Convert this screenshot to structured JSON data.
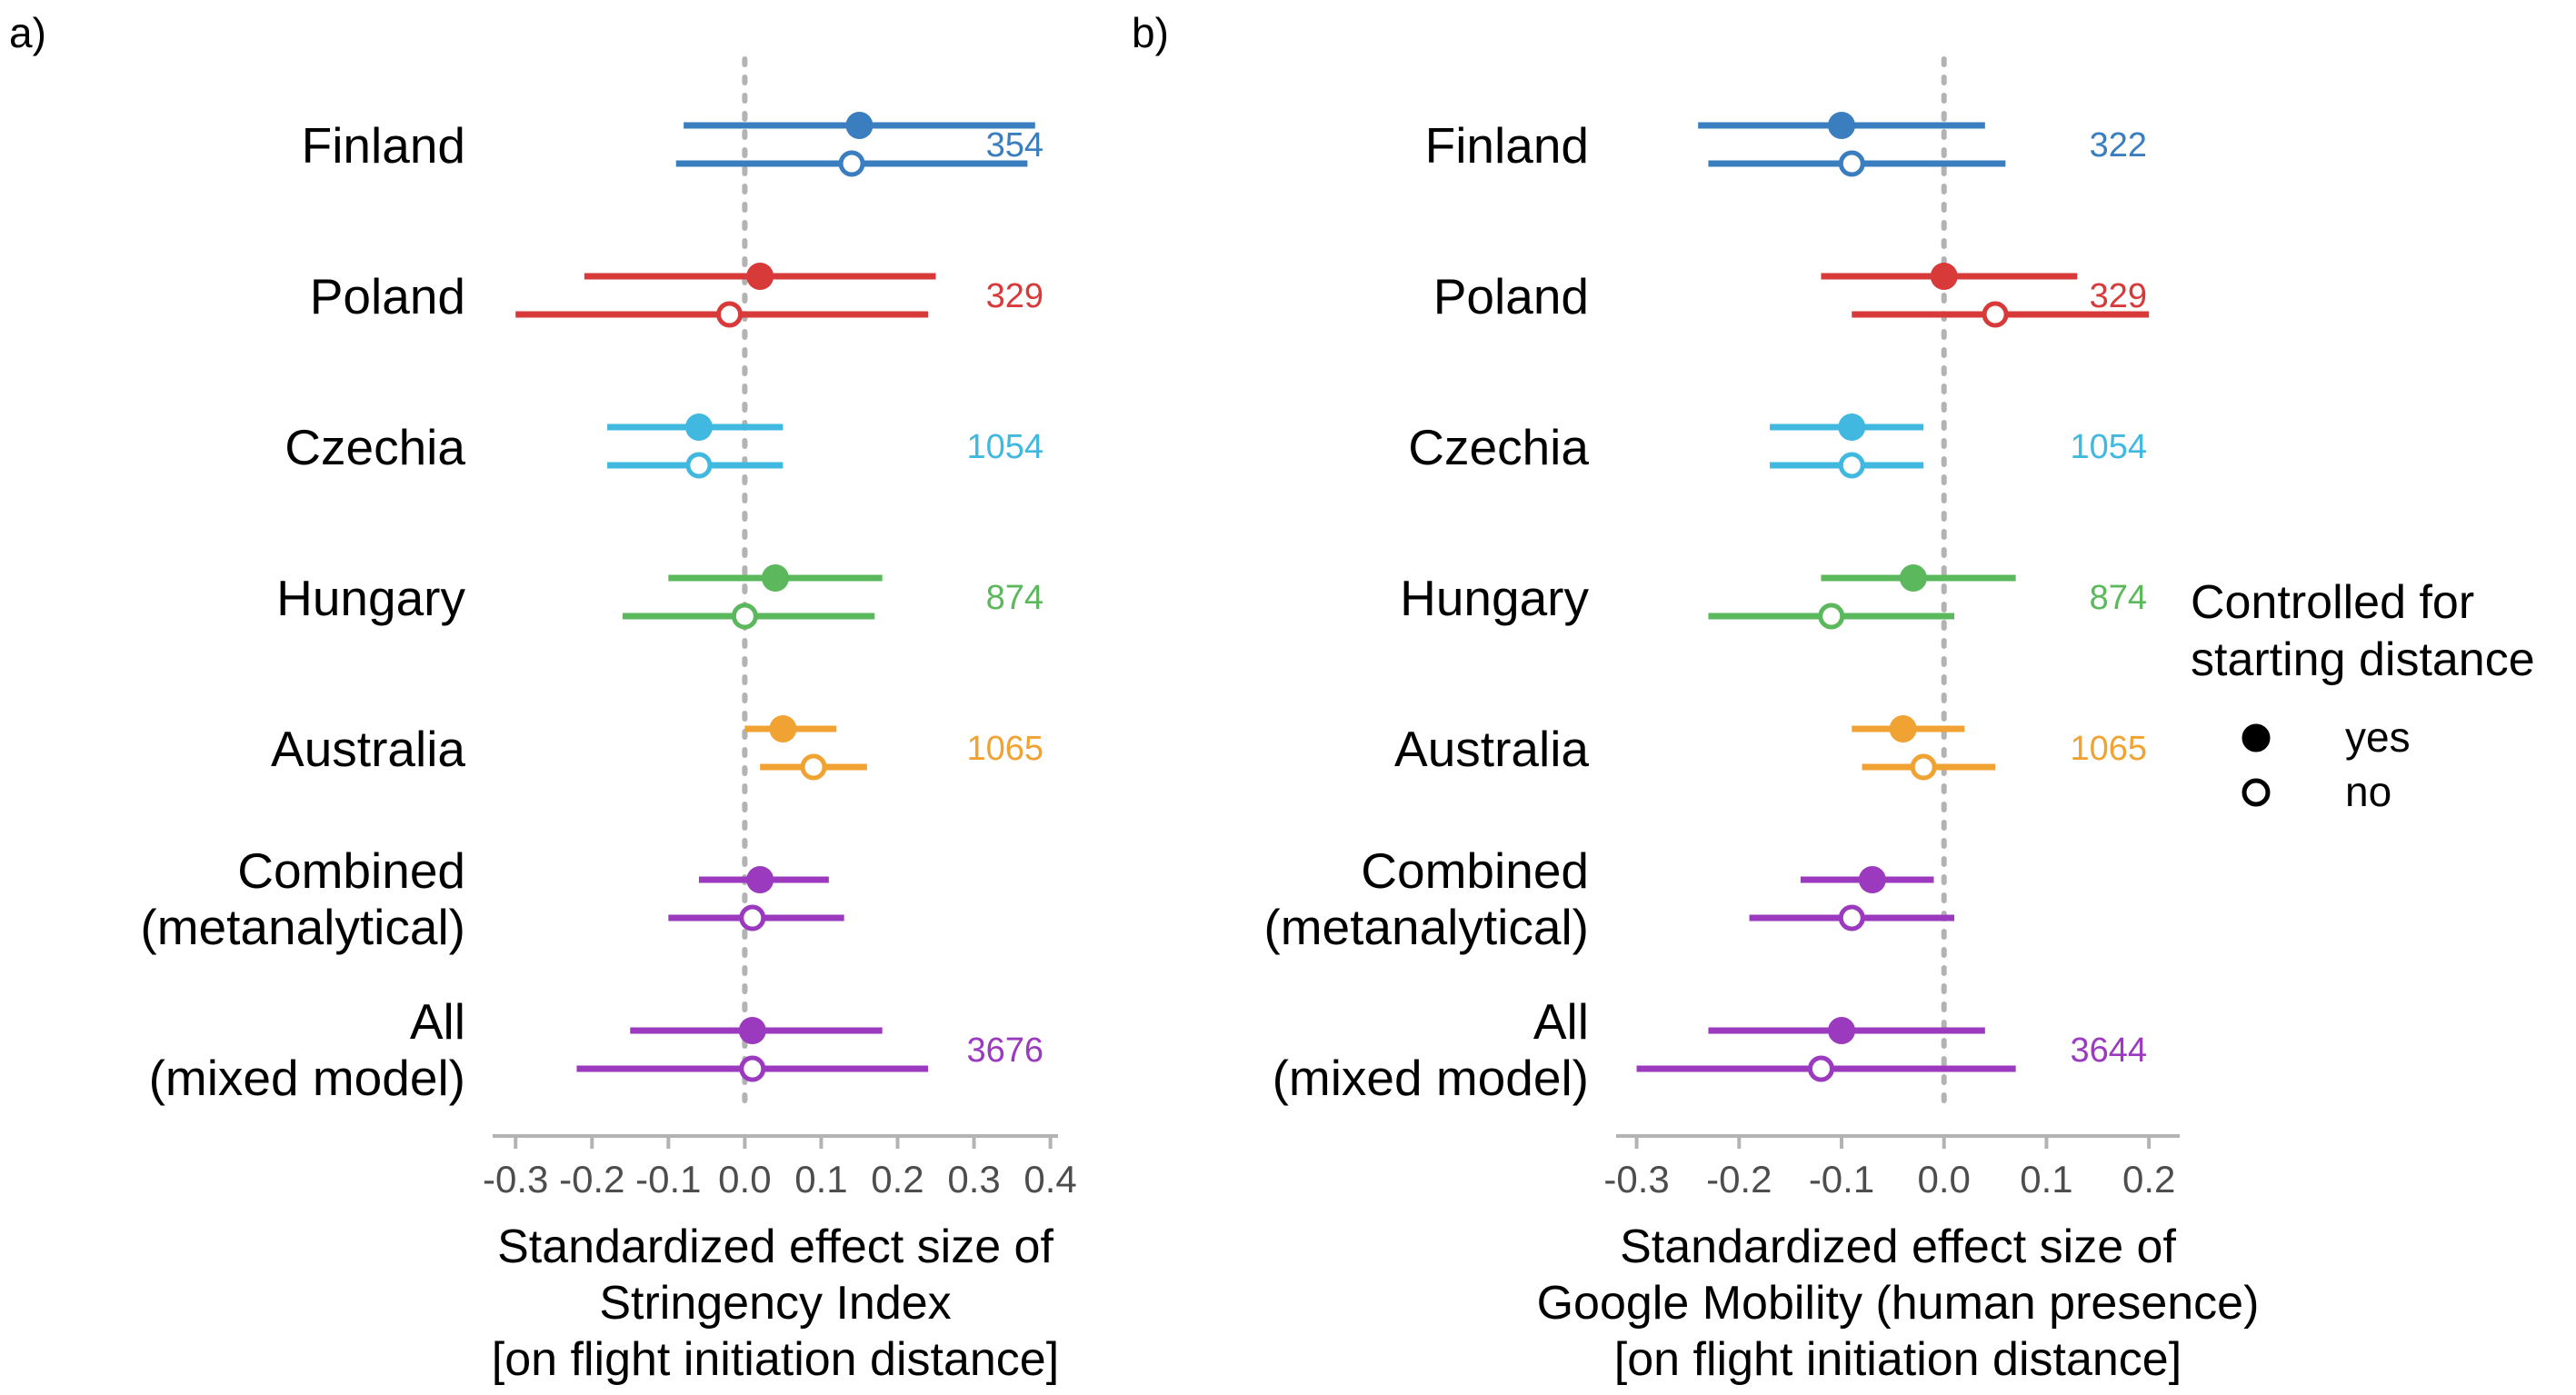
{
  "legend": {
    "title_line1": "Controlled for",
    "title_line2": "starting distance",
    "items": [
      {
        "label": "yes",
        "filled": true
      },
      {
        "label": "no",
        "filled": false
      }
    ]
  },
  "chart_data": [
    {
      "type": "forest",
      "panel_label": "a)",
      "xlabel": [
        "Standardized effect size of",
        "Stringency Index",
        "[on flight initiation distance]"
      ],
      "xlim": [
        -0.33,
        0.41
      ],
      "ticks": [
        -0.3,
        -0.2,
        -0.1,
        0.0,
        0.1,
        0.2,
        0.3,
        0.4
      ],
      "tick_labels": [
        "-0.3",
        "-0.2",
        "-0.1",
        "0.0",
        "0.1",
        "0.2",
        "0.3",
        "0.4"
      ],
      "reference_line": 0,
      "groups": [
        {
          "label": [
            "Finland"
          ],
          "color": "#3a7ebf",
          "n": "354",
          "estimates": [
            {
              "controlled": "yes",
              "est": 0.15,
              "lo": -0.08,
              "hi": 0.38
            },
            {
              "controlled": "no",
              "est": 0.14,
              "lo": -0.09,
              "hi": 0.37
            }
          ]
        },
        {
          "label": [
            "Poland"
          ],
          "color": "#d83a3a",
          "n": "329",
          "estimates": [
            {
              "controlled": "yes",
              "est": 0.02,
              "lo": -0.21,
              "hi": 0.25
            },
            {
              "controlled": "no",
              "est": -0.02,
              "lo": -0.3,
              "hi": 0.24
            }
          ]
        },
        {
          "label": [
            "Czechia"
          ],
          "color": "#41b8e0",
          "n": "1054",
          "estimates": [
            {
              "controlled": "yes",
              "est": -0.06,
              "lo": -0.18,
              "hi": 0.05
            },
            {
              "controlled": "no",
              "est": -0.06,
              "lo": -0.18,
              "hi": 0.05
            }
          ]
        },
        {
          "label": [
            "Hungary"
          ],
          "color": "#5cb85c",
          "n": "874",
          "estimates": [
            {
              "controlled": "yes",
              "est": 0.04,
              "lo": -0.1,
              "hi": 0.18
            },
            {
              "controlled": "no",
              "est": 0.0,
              "lo": -0.16,
              "hi": 0.17
            }
          ]
        },
        {
          "label": [
            "Australia"
          ],
          "color": "#f0a232",
          "n": "1065",
          "estimates": [
            {
              "controlled": "yes",
              "est": 0.05,
              "lo": 0.0,
              "hi": 0.12
            },
            {
              "controlled": "no",
              "est": 0.09,
              "lo": 0.02,
              "hi": 0.16
            }
          ]
        },
        {
          "label": [
            "Combined",
            "(metanalytical)"
          ],
          "color": "#9b3abf",
          "n": "",
          "estimates": [
            {
              "controlled": "yes",
              "est": 0.02,
              "lo": -0.06,
              "hi": 0.11
            },
            {
              "controlled": "no",
              "est": 0.01,
              "lo": -0.1,
              "hi": 0.13
            }
          ]
        },
        {
          "label": [
            "All",
            "(mixed model)"
          ],
          "color": "#9b3abf",
          "n": "3676",
          "estimates": [
            {
              "controlled": "yes",
              "est": 0.01,
              "lo": -0.15,
              "hi": 0.18
            },
            {
              "controlled": "no",
              "est": 0.01,
              "lo": -0.22,
              "hi": 0.24
            }
          ]
        }
      ]
    },
    {
      "type": "forest",
      "panel_label": "b)",
      "xlabel": [
        "Standardized effect size of",
        "Google Mobility (human presence)",
        "[on flight initiation distance]"
      ],
      "xlim": [
        -0.32,
        0.23
      ],
      "ticks": [
        -0.3,
        -0.2,
        -0.1,
        0.0,
        0.1,
        0.2
      ],
      "tick_labels": [
        "-0.3",
        "-0.2",
        "-0.1",
        "0.0",
        "0.1",
        "0.2"
      ],
      "reference_line": 0,
      "groups": [
        {
          "label": [
            "Finland"
          ],
          "color": "#3a7ebf",
          "n": "322",
          "estimates": [
            {
              "controlled": "yes",
              "est": -0.1,
              "lo": -0.24,
              "hi": 0.04
            },
            {
              "controlled": "no",
              "est": -0.09,
              "lo": -0.23,
              "hi": 0.06
            }
          ]
        },
        {
          "label": [
            "Poland"
          ],
          "color": "#d83a3a",
          "n": "329",
          "estimates": [
            {
              "controlled": "yes",
              "est": 0.0,
              "lo": -0.12,
              "hi": 0.13
            },
            {
              "controlled": "no",
              "est": 0.05,
              "lo": -0.09,
              "hi": 0.2
            }
          ]
        },
        {
          "label": [
            "Czechia"
          ],
          "color": "#41b8e0",
          "n": "1054",
          "estimates": [
            {
              "controlled": "yes",
              "est": -0.09,
              "lo": -0.17,
              "hi": -0.02
            },
            {
              "controlled": "no",
              "est": -0.09,
              "lo": -0.17,
              "hi": -0.02
            }
          ]
        },
        {
          "label": [
            "Hungary"
          ],
          "color": "#5cb85c",
          "n": "874",
          "estimates": [
            {
              "controlled": "yes",
              "est": -0.03,
              "lo": -0.12,
              "hi": 0.07
            },
            {
              "controlled": "no",
              "est": -0.11,
              "lo": -0.23,
              "hi": 0.01
            }
          ]
        },
        {
          "label": [
            "Australia"
          ],
          "color": "#f0a232",
          "n": "1065",
          "estimates": [
            {
              "controlled": "yes",
              "est": -0.04,
              "lo": -0.09,
              "hi": 0.02
            },
            {
              "controlled": "no",
              "est": -0.02,
              "lo": -0.08,
              "hi": 0.05
            }
          ]
        },
        {
          "label": [
            "Combined",
            "(metanalytical)"
          ],
          "color": "#9b3abf",
          "n": "",
          "estimates": [
            {
              "controlled": "yes",
              "est": -0.07,
              "lo": -0.14,
              "hi": -0.01
            },
            {
              "controlled": "no",
              "est": -0.09,
              "lo": -0.19,
              "hi": 0.01
            }
          ]
        },
        {
          "label": [
            "All",
            "(mixed model)"
          ],
          "color": "#9b3abf",
          "n": "3644",
          "estimates": [
            {
              "controlled": "yes",
              "est": -0.1,
              "lo": -0.23,
              "hi": 0.04
            },
            {
              "controlled": "no",
              "est": -0.12,
              "lo": -0.3,
              "hi": 0.07
            }
          ]
        }
      ]
    }
  ]
}
